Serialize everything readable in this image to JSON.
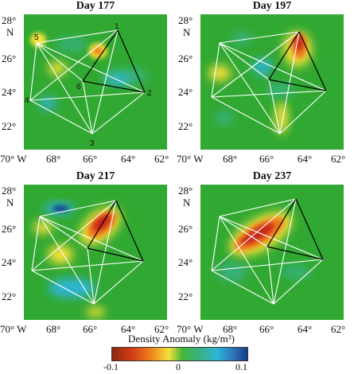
{
  "panels": [
    {
      "id": "p1",
      "title": "Day 177",
      "show_numbers": true
    },
    {
      "id": "p2",
      "title": "Day 197",
      "show_numbers": false
    },
    {
      "id": "p3",
      "title": "Day 217",
      "show_numbers": false
    },
    {
      "id": "p4",
      "title": "Day 237",
      "show_numbers": false
    }
  ],
  "lat_ticks": [
    "28°",
    "26°",
    "24°",
    "22°"
  ],
  "lat_hemisphere": "N",
  "lon_ticks": [
    "70° W",
    "68°",
    "66°",
    "64°",
    "62°"
  ],
  "node_labels": [
    "1",
    "2",
    "3",
    "4",
    "5",
    "6"
  ],
  "colorbar": {
    "title": "Density Anomaly (kg/m³)",
    "ticks": [
      "-0.1",
      "0",
      "0.1"
    ],
    "range": [
      -0.1,
      0.1
    ]
  },
  "colors": {
    "background": "#31a832",
    "positive": "#d23a14",
    "negative": "#2db5d6",
    "line_white": "#ffffff",
    "line_black": "#000000"
  }
}
